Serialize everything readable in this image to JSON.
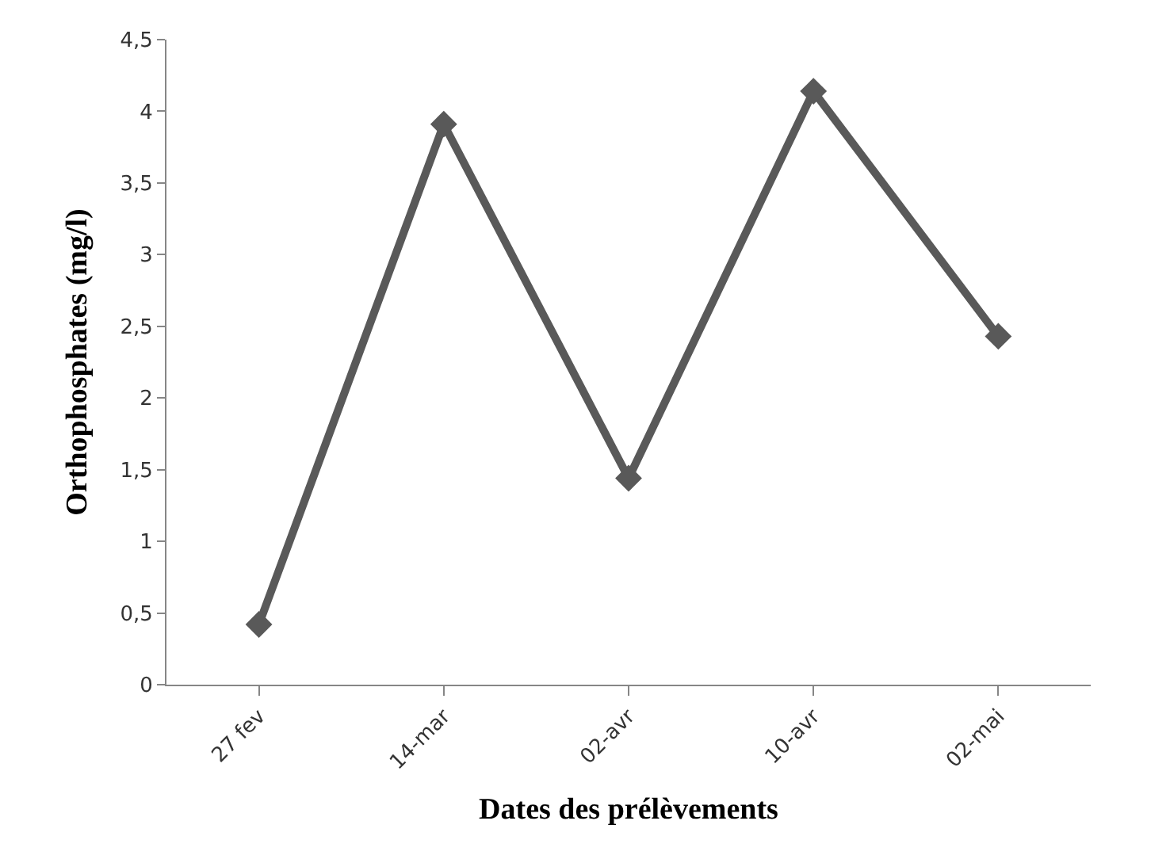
{
  "chart_data": {
    "type": "line",
    "xlabel": "Dates des prélèvements",
    "ylabel": "Orthophosphates (mg/l)",
    "categories": [
      "27 fev",
      "14-mar",
      "02-avr",
      "10-avr",
      "02-mai"
    ],
    "series": [
      {
        "color": "#595959",
        "values": [
          0.42,
          3.91,
          1.44,
          4.14,
          2.43
        ]
      }
    ],
    "ylim": [
      0,
      4.5
    ],
    "yticks": [
      0,
      {
        "value": 0.5,
        "label": "0,5"
      },
      1,
      {
        "value": 1.5,
        "label": "1,5"
      },
      2,
      {
        "value": 2.5,
        "label": "2,5"
      },
      3,
      {
        "value": 3.5,
        "label": "3,5"
      },
      4,
      {
        "value": 4.5,
        "label": "4,5"
      }
    ],
    "marker": "diamond",
    "line_style": "solid"
  }
}
